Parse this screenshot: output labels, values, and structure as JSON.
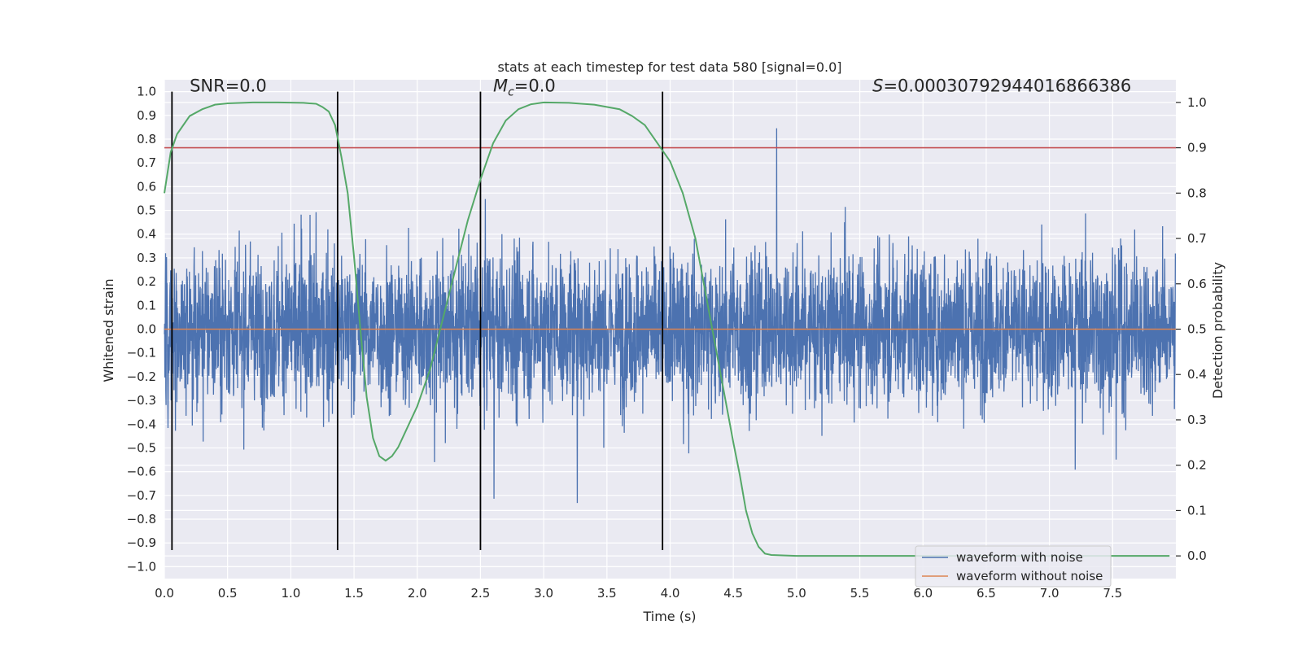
{
  "chart_data": {
    "type": "line",
    "title": "stats at each timestep for test data 580 [signal=0.0]",
    "xlabel": "Time (s)",
    "ylabel": "Whitened strain",
    "y2label": "Detection probability",
    "xlim": [
      0.0,
      8.0
    ],
    "ylim": [
      -1.05,
      1.05
    ],
    "y2lim": [
      -0.05,
      1.05
    ],
    "x_ticks": [
      "0.0",
      "0.5",
      "1.0",
      "1.5",
      "2.0",
      "2.5",
      "3.0",
      "3.5",
      "4.0",
      "4.5",
      "5.0",
      "5.5",
      "6.0",
      "6.5",
      "7.0",
      "7.5"
    ],
    "x_tick_values": [
      0.0,
      0.5,
      1.0,
      1.5,
      2.0,
      2.5,
      3.0,
      3.5,
      4.0,
      4.5,
      5.0,
      5.5,
      6.0,
      6.5,
      7.0,
      7.5
    ],
    "y_ticks": [
      "−1.0",
      "−0.9",
      "−0.8",
      "−0.7",
      "−0.6",
      "−0.5",
      "−0.4",
      "−0.3",
      "−0.2",
      "−0.1",
      "0.0",
      "0.1",
      "0.2",
      "0.3",
      "0.4",
      "0.5",
      "0.6",
      "0.7",
      "0.8",
      "0.9",
      "1.0"
    ],
    "y_tick_values": [
      -1.0,
      -0.9,
      -0.8,
      -0.7,
      -0.6,
      -0.5,
      -0.4,
      -0.3,
      -0.2,
      -0.1,
      0.0,
      0.1,
      0.2,
      0.3,
      0.4,
      0.5,
      0.6,
      0.7,
      0.8,
      0.9,
      1.0
    ],
    "y2_ticks": [
      "0.0",
      "0.1",
      "0.2",
      "0.3",
      "0.4",
      "0.5",
      "0.6",
      "0.7",
      "0.8",
      "0.9",
      "1.0"
    ],
    "y2_tick_values": [
      0.0,
      0.1,
      0.2,
      0.3,
      0.4,
      0.5,
      0.6,
      0.7,
      0.8,
      0.9,
      1.0
    ],
    "grid": true,
    "legend_position": "bottom-right",
    "series": [
      {
        "name": "waveform with noise",
        "color": "#4c72b0",
        "description": "dense noise trace, typical amplitude about ±0.35, peaks up to about ±0.85"
      },
      {
        "name": "waveform without noise",
        "color": "#dd8452",
        "values_constant": 0.0
      }
    ],
    "probability_curve": {
      "color": "#55a868",
      "x": [
        0.0,
        0.05,
        0.1,
        0.2,
        0.3,
        0.4,
        0.5,
        0.7,
        0.9,
        1.1,
        1.2,
        1.25,
        1.3,
        1.35,
        1.4,
        1.45,
        1.5,
        1.55,
        1.6,
        1.65,
        1.7,
        1.75,
        1.8,
        1.85,
        1.9,
        2.0,
        2.1,
        2.2,
        2.3,
        2.4,
        2.5,
        2.6,
        2.7,
        2.8,
        2.9,
        3.0,
        3.2,
        3.4,
        3.6,
        3.7,
        3.8,
        3.9,
        4.0,
        4.1,
        4.2,
        4.3,
        4.4,
        4.5,
        4.55,
        4.6,
        4.65,
        4.7,
        4.75,
        4.8,
        5.0,
        6.0,
        7.0,
        7.95
      ],
      "y": [
        0.8,
        0.89,
        0.93,
        0.97,
        0.985,
        0.995,
        0.998,
        1.0,
        1.0,
        0.999,
        0.997,
        0.99,
        0.98,
        0.95,
        0.88,
        0.8,
        0.66,
        0.5,
        0.35,
        0.26,
        0.22,
        0.21,
        0.22,
        0.24,
        0.27,
        0.33,
        0.41,
        0.52,
        0.63,
        0.74,
        0.83,
        0.91,
        0.96,
        0.985,
        0.996,
        1.0,
        0.999,
        0.995,
        0.985,
        0.97,
        0.95,
        0.91,
        0.87,
        0.8,
        0.7,
        0.55,
        0.4,
        0.25,
        0.18,
        0.1,
        0.05,
        0.02,
        0.005,
        0.002,
        0.0,
        0.0,
        0.0,
        0.0
      ]
    },
    "threshold_line": {
      "value": 0.9,
      "axis": "y2",
      "color": "#c44e52"
    },
    "vertical_lines": {
      "x": [
        0.06,
        1.37,
        2.5,
        3.94
      ],
      "y_range": [
        -0.93,
        1.0
      ],
      "color": "#000000"
    },
    "annotations": [
      {
        "text": "SNR=0.0",
        "x": 0.2,
        "y": 1.0
      },
      {
        "text_var": "M",
        "text_sub": "c",
        "text_rest": "=0.0",
        "x": 2.6,
        "y": 1.0
      },
      {
        "text_var": "S",
        "text_rest": "=0.00030792944016866386",
        "x": 5.6,
        "y": 1.0
      }
    ]
  }
}
